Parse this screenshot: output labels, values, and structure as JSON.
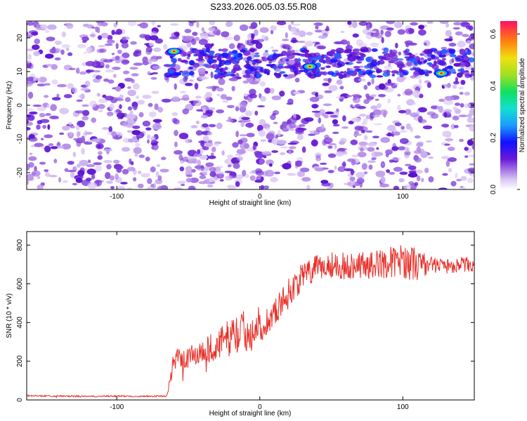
{
  "title": "S233.2026.005.03.55.R08",
  "chart_data": [
    {
      "type": "heatmap",
      "xlabel": "Height of straight line (km)",
      "ylabel": "Frequency (Hz)",
      "xlim": [
        -163,
        150
      ],
      "ylim": [
        -25,
        25
      ],
      "xticks": [
        -100,
        0,
        100
      ],
      "yticks": [
        -20,
        -10,
        0,
        10,
        20
      ],
      "colorbar": {
        "label": "Normalized spectral amplitude",
        "range": [
          0.0,
          0.65
        ],
        "ticks": [
          0.0,
          0.2,
          0.4,
          0.6
        ]
      },
      "hotspots": [
        {
          "x": -60,
          "y": 16,
          "value": 0.6
        },
        {
          "x": 35,
          "y": 11.5,
          "value": 0.65
        },
        {
          "x": 127,
          "y": 9.5,
          "value": 0.6
        }
      ],
      "features": [
        {
          "x_range": [
            -163,
            -65
          ],
          "description": "background noise only"
        },
        {
          "x_range": [
            -65,
            150
          ],
          "band_frequency_hz": [
            9,
            17
          ]
        }
      ]
    },
    {
      "type": "line",
      "xlabel": "Height of straight line (km)",
      "ylabel": "SNR (10 * v/v)",
      "xlim": [
        -163,
        150
      ],
      "ylim": [
        0,
        870
      ],
      "xticks": [
        -100,
        0,
        100
      ],
      "yticks": [
        0,
        200,
        400,
        600,
        800
      ],
      "series": [
        {
          "color": "#e8302a",
          "x": [
            -163,
            -140,
            -120,
            -100,
            -80,
            -65,
            -60,
            -50,
            -40,
            -30,
            -20,
            -10,
            0,
            10,
            20,
            30,
            40,
            50,
            60,
            70,
            80,
            90,
            100,
            110,
            120,
            130,
            140,
            150
          ],
          "values": [
            22,
            20,
            18,
            20,
            19,
            20,
            200,
            220,
            250,
            280,
            330,
            360,
            370,
            450,
            550,
            640,
            680,
            700,
            690,
            700,
            700,
            710,
            720,
            700,
            700,
            690,
            700,
            700
          ],
          "noise": [
            4,
            4,
            4,
            4,
            4,
            4,
            60,
            60,
            70,
            80,
            100,
            110,
            70,
            70,
            80,
            70,
            70,
            70,
            70,
            70,
            70,
            80,
            90,
            90,
            40,
            40,
            40,
            40
          ]
        }
      ]
    }
  ]
}
